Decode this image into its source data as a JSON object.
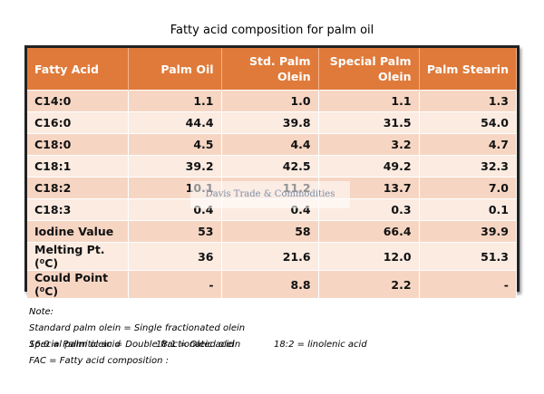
{
  "title": "Fatty acid composition for palm oil",
  "table": {
    "header": [
      "Fatty Acid",
      "Palm Oil",
      "Std. Palm Olein",
      "Special Palm Olein",
      "Palm Stearin"
    ],
    "rows": [
      [
        "C14:0",
        "1.1",
        "1.0",
        "1.1",
        "1.3"
      ],
      [
        "C16:0",
        "44.4",
        "39.8",
        "31.5",
        "54.0"
      ],
      [
        "C18:0",
        "4.5",
        "4.4",
        "3.2",
        "4.7"
      ],
      [
        "C18:1",
        "39.2",
        "42.5",
        "49.2",
        "32.3"
      ],
      [
        "C18:2",
        "10.1",
        "11.2",
        "13.7",
        "7.0"
      ],
      [
        "C18:3",
        "0.4",
        "0.4",
        "0.3",
        "0.1"
      ],
      [
        "Iodine Value",
        "53",
        "58",
        "66.4",
        "39.9"
      ],
      [
        "Melting Pt. (⁰C)",
        "36",
        "21.6",
        "12.0",
        "51.3"
      ],
      [
        "Could Point (⁰C)",
        "-",
        "8.8",
        "2.2",
        "-"
      ]
    ]
  },
  "watermark": "Davis Trade & Commodities",
  "notes": {
    "heading": "Note:",
    "lines": [
      "Standard palm olein = Single fractionated olein",
      "Special palm olein = Double fractionated olein",
      "FAC  = Fatty acid composition :"
    ],
    "legend": [
      "16:0 = Palmitic acid",
      "18:1 = Oleic acid",
      "18:2 = linolenic acid"
    ]
  }
}
